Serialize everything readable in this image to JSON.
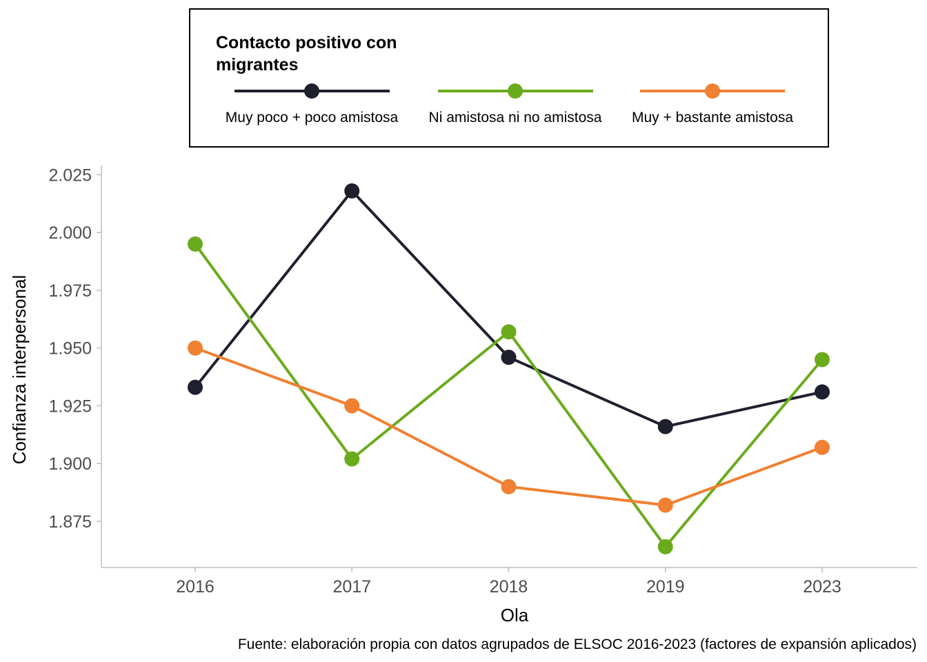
{
  "chart_data": {
    "type": "line",
    "categories": [
      "2016",
      "2017",
      "2018",
      "2019",
      "2023"
    ],
    "xlabel": "Ola",
    "ylabel": "Confianza interpersonal",
    "ylim": [
      1.855,
      2.029
    ],
    "yticks": [
      "1.875",
      "1.900",
      "1.925",
      "1.950",
      "1.975",
      "2.000",
      "2.025"
    ],
    "grid": false,
    "legend": {
      "title_line1": "Contacto positivo con",
      "title_line2": "migrantes",
      "placement": "top"
    },
    "caption": "Fuente: elaboración propia con datos agrupados de ELSOC 2016-2023 (factores de expansión aplicados)",
    "series": [
      {
        "name": "Muy poco + poco amistosa",
        "color": "#1f202e",
        "values": [
          1.933,
          2.018,
          1.946,
          1.916,
          1.931
        ]
      },
      {
        "name": "Ni amistosa ni no amistosa",
        "color": "#6aab1c",
        "values": [
          1.995,
          1.902,
          1.957,
          1.864,
          1.945
        ]
      },
      {
        "name": "Muy + bastante amistosa",
        "color": "#f08032",
        "values": [
          1.95,
          1.925,
          1.89,
          1.882,
          1.907
        ]
      }
    ]
  }
}
